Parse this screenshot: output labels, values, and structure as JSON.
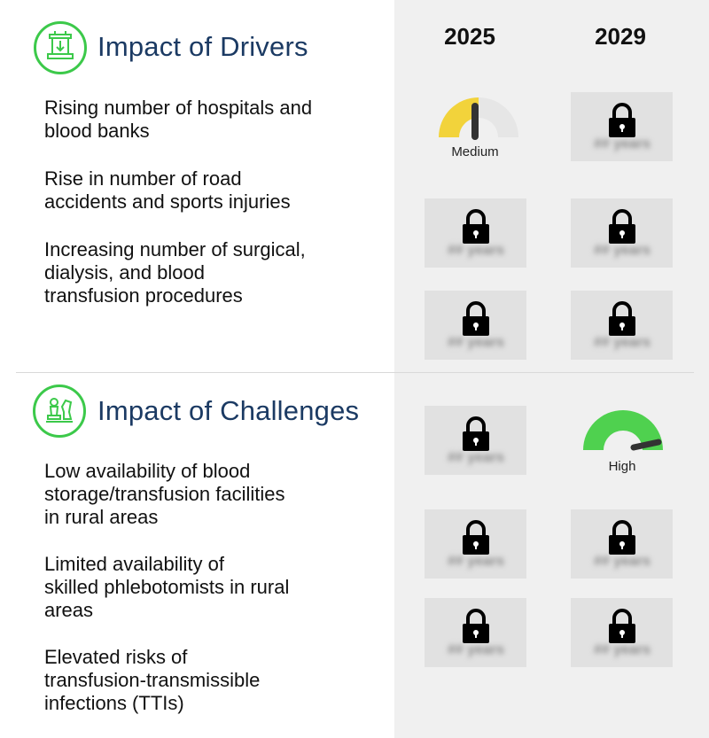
{
  "columns": {
    "year_1": "2025",
    "year_2": "2029"
  },
  "drivers": {
    "title": "Impact of Drivers",
    "icon": "drivers-icon",
    "items": [
      {
        "label": "Rising number of hospitals and\nblood banks",
        "impact_2025": "Medium",
        "impact_2029": "locked"
      },
      {
        "label": "Rise in number of road\naccidents and sports injuries",
        "impact_2025": "locked",
        "impact_2029": "locked"
      },
      {
        "label": "Increasing number of surgical,\ndialysis, and blood\ntransfusion procedures",
        "impact_2025": "locked",
        "impact_2029": "locked"
      }
    ]
  },
  "challenges": {
    "title": "Impact of Challenges",
    "icon": "chess-icon",
    "items": [
      {
        "label": "Low availability of blood\nstorage/transfusion facilities\nin rural areas",
        "impact_2025": "locked",
        "impact_2029": "High"
      },
      {
        "label": "Limited availability of\nskilled phlebotomists in rural\nareas",
        "impact_2025": "locked",
        "impact_2029": "locked"
      },
      {
        "label": "Elevated risks of\ntransfusion-transmissible\ninfections (TTIs)",
        "impact_2025": "locked",
        "impact_2029": "locked"
      }
    ]
  },
  "gauges": {
    "medium": {
      "label": "Medium",
      "level": 0.5,
      "color": "#f2d33b"
    },
    "high": {
      "label": "High",
      "level": 0.85,
      "color": "#4fd14f"
    }
  },
  "locked_placeholder": "## years",
  "colors": {
    "accent_green": "#3cc94a",
    "title_navy": "#1b3a63",
    "panel_gray": "#f0f0f0"
  }
}
